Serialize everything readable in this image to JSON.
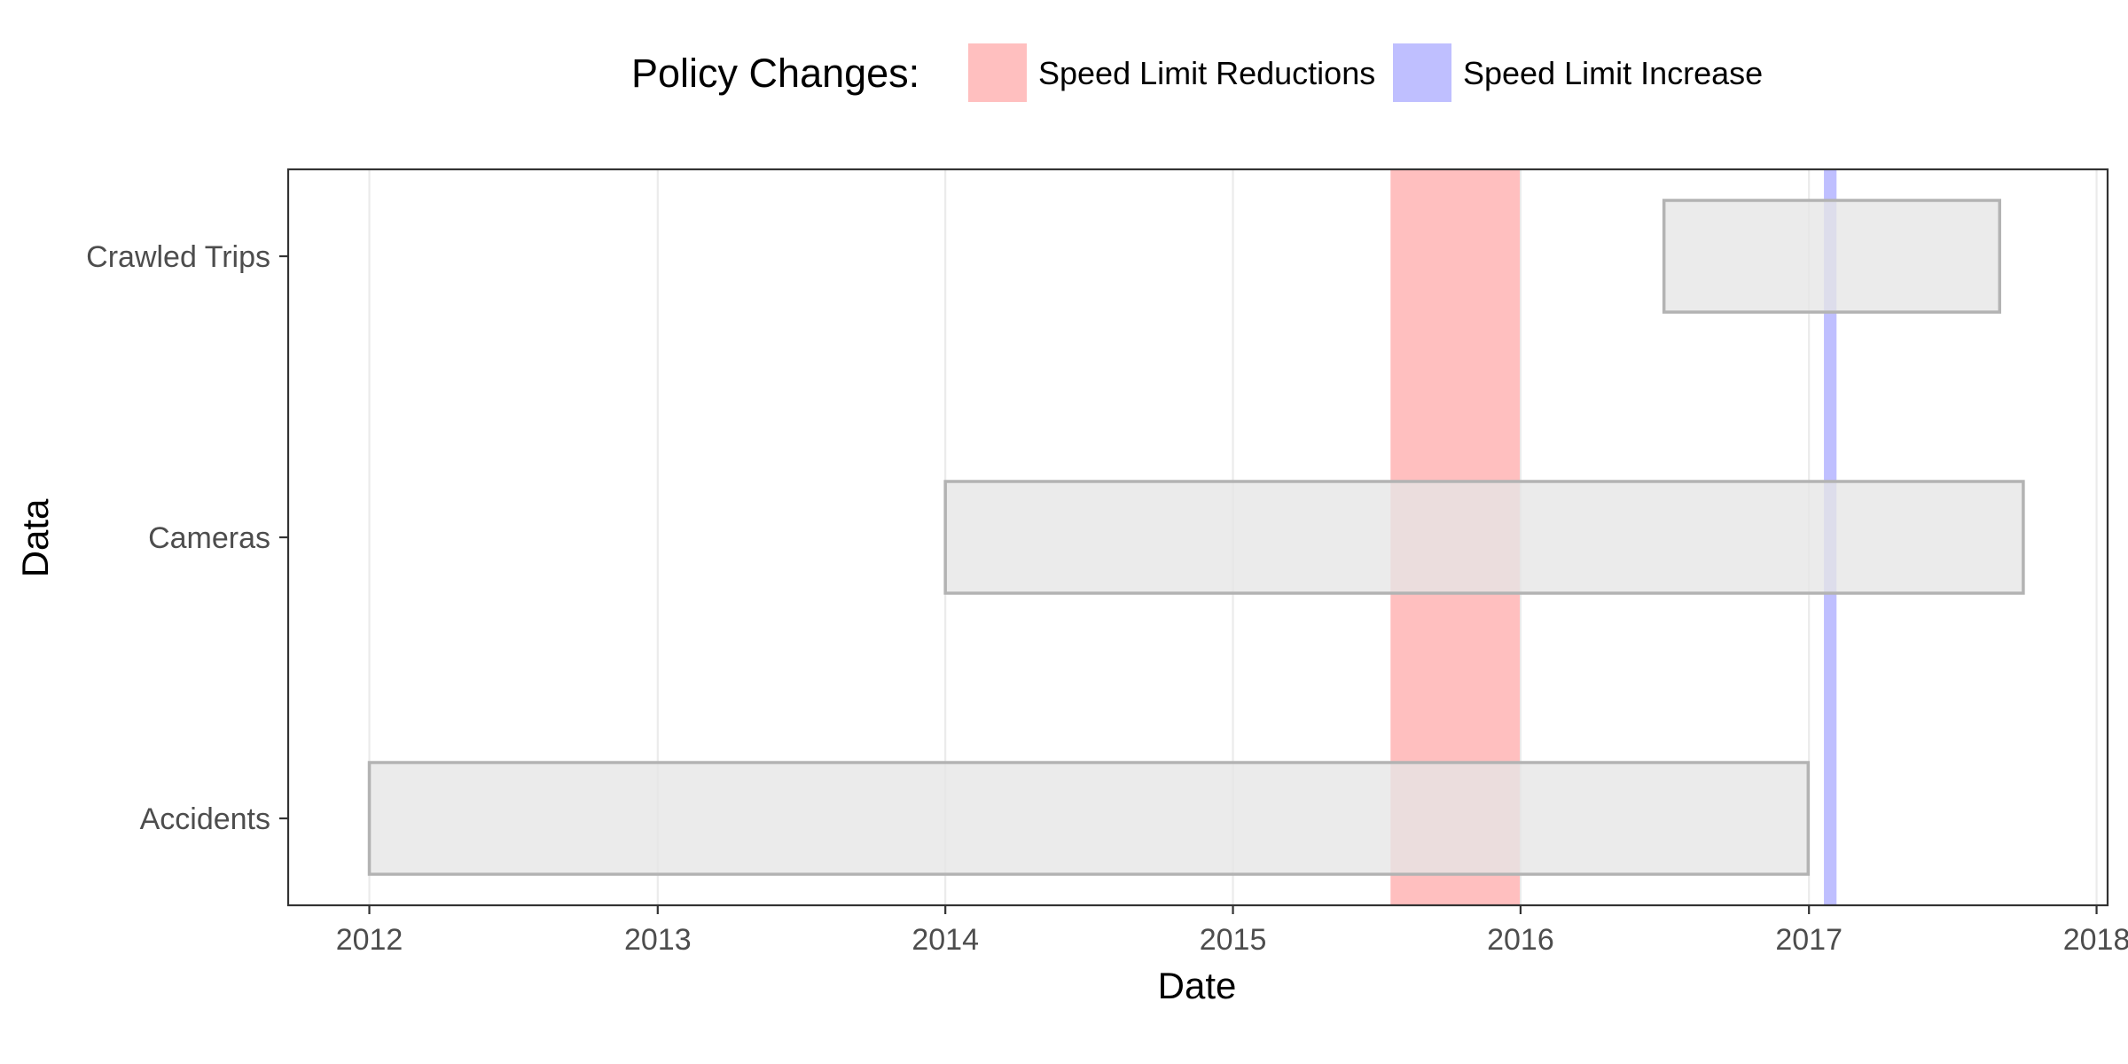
{
  "chart_data": {
    "type": "bar",
    "orientation": "horizontal-timeline",
    "title": "",
    "xlabel": "Date",
    "ylabel": "Data",
    "x_ticks": [
      "2012",
      "2013",
      "2014",
      "2015",
      "2016",
      "2017",
      "2018"
    ],
    "xlim": [
      "2011-09-20",
      "2018-01-15"
    ],
    "categories": [
      "Crawled Trips",
      "Cameras",
      "Accidents"
    ],
    "bars": [
      {
        "category": "Crawled Trips",
        "start": "2016-07-01",
        "end": "2017-08-31"
      },
      {
        "category": "Cameras",
        "start": "2014-01-01",
        "end": "2017-09-30"
      },
      {
        "category": "Accidents",
        "start": "2012-01-01",
        "end": "2016-12-31"
      }
    ],
    "bar_fill": "#e5e5e5",
    "bar_stroke": "#b3b3b3",
    "legend": {
      "title": "Policy Changes:",
      "placement": "top",
      "items": [
        {
          "label": "Speed Limit Reductions",
          "color": "#ffbfbf"
        },
        {
          "label": "Speed Limit Increase",
          "color": "#bfbfff"
        }
      ]
    },
    "policy_periods": [
      {
        "type": "Speed Limit Reductions",
        "start": "2015-07-20",
        "end": "2015-12-31",
        "color": "#ffbfbf"
      },
      {
        "type": "Speed Limit Increase",
        "start": "2017-01-20",
        "end": "2017-02-05",
        "color": "#bfbfff"
      }
    ],
    "grid": true
  }
}
